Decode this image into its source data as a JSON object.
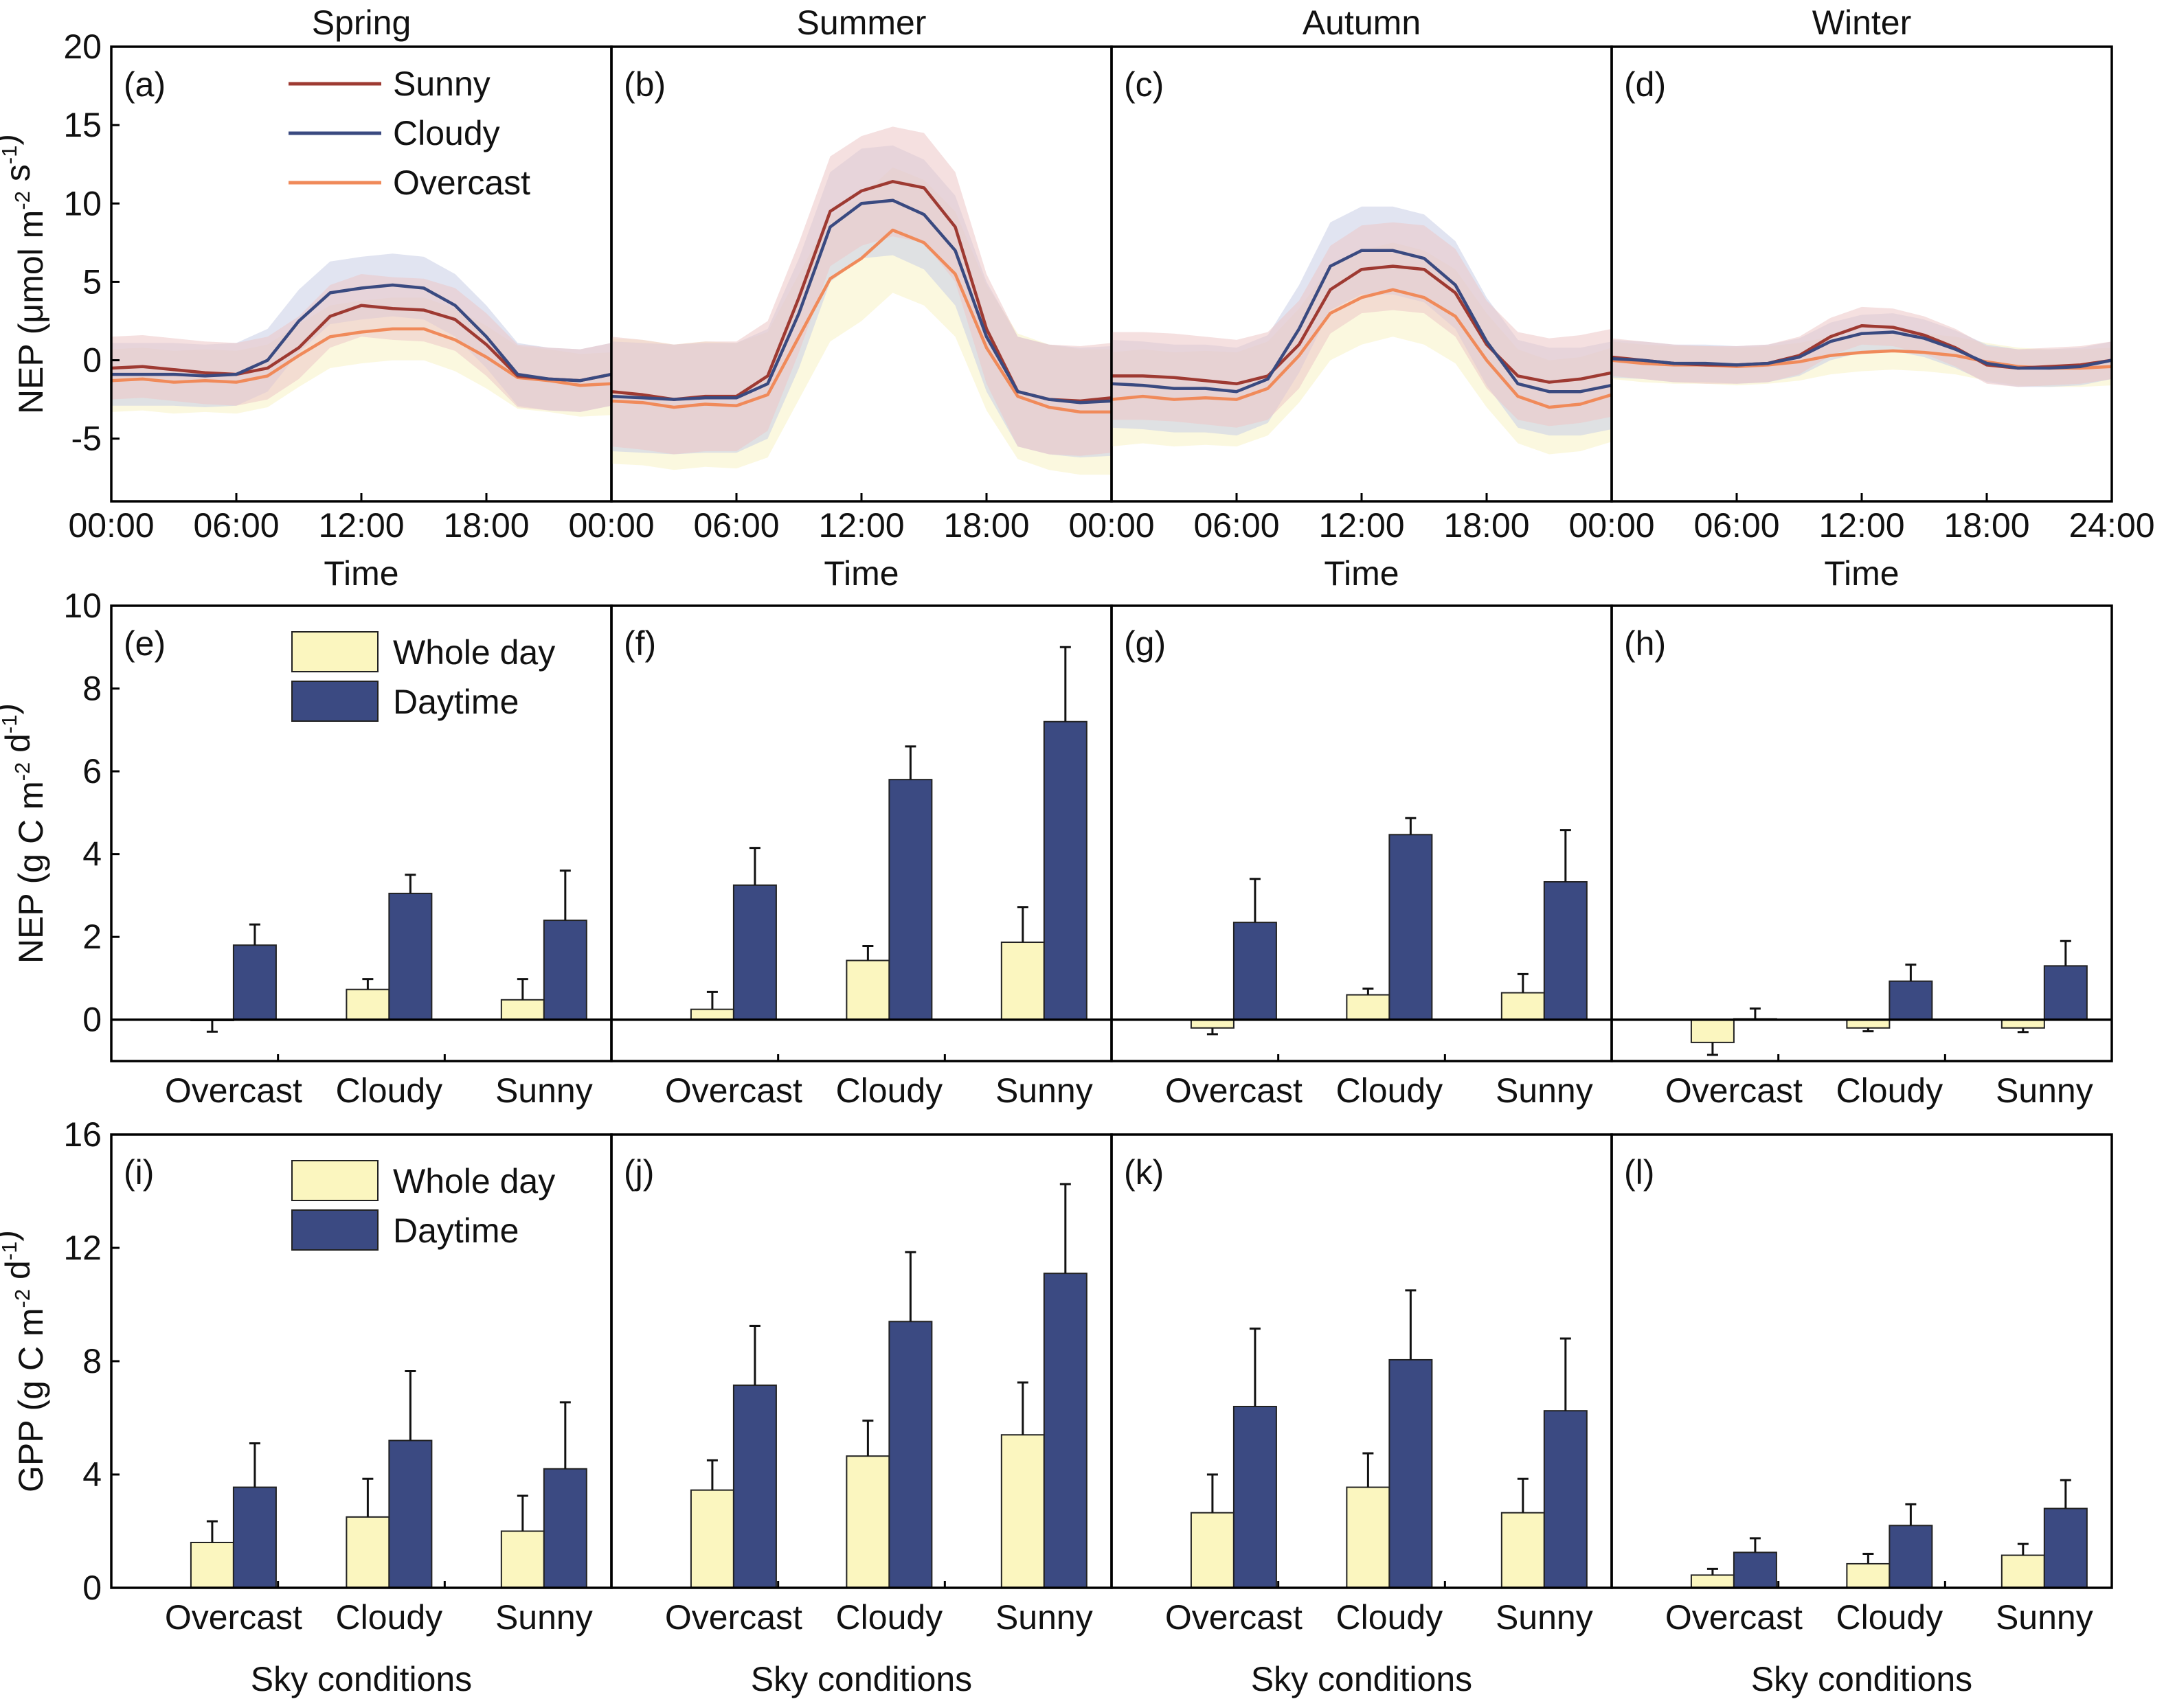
{
  "colors": {
    "sunny": "#9e3a32",
    "cloudy": "#3a4a80",
    "overcast": "#f08a5a",
    "sunny_band": "#ecc6c6",
    "cloudy_band": "#c8cde6",
    "overcast_band": "#f7f3c4",
    "whole_day": "#fbf6bf",
    "daytime": "#3b4a82",
    "axis": "#000000"
  },
  "seasons": [
    "Spring",
    "Summer",
    "Autumn",
    "Winter"
  ],
  "rows": {
    "nep_diurnal": {
      "ylabel": "NEP (μmol m-2 s-1)",
      "xlabel": "Time"
    },
    "nep_daily": {
      "ylabel": "NEP (g C m-2 d-1)",
      "xlabel": ""
    },
    "gpp_daily": {
      "ylabel": "GPP (g C m-2 d-1)",
      "xlabel": "Sky conditions"
    }
  },
  "chart_data": [
    {
      "type": "line",
      "panel_labels": [
        "(a)",
        "(b)",
        "(c)",
        "(d)"
      ],
      "xlabel": "Time",
      "ylabel": "NEP (μmol m-2 s-1)",
      "ylim": [
        -9,
        20
      ],
      "yticks": [
        -5,
        0,
        5,
        10,
        15,
        20
      ],
      "xticks": [
        "00:00",
        "06:00",
        "12:00",
        "18:00"
      ],
      "xtick_last": "24:00",
      "x_hours": [
        0,
        1.5,
        3,
        4.5,
        6,
        7.5,
        9,
        10.5,
        12,
        13.5,
        15,
        16.5,
        18,
        19.5,
        21,
        22.5,
        24
      ],
      "legend": [
        "Sunny",
        "Cloudy",
        "Overcast"
      ],
      "legend_position": "top-right of panel (a)",
      "band_halfwidth": {
        "Spring": [
          2.0,
          2.0,
          2.0
        ],
        "Summer": [
          3.5,
          3.5,
          4.0
        ],
        "Autumn": [
          2.8,
          2.8,
          3.0
        ],
        "Winter": [
          1.2,
          1.2,
          1.2
        ]
      },
      "panels": [
        {
          "season": "Spring",
          "series": [
            {
              "name": "Sunny",
              "values": [
                -0.5,
                -0.4,
                -0.6,
                -0.8,
                -0.9,
                -0.5,
                0.8,
                2.8,
                3.5,
                3.3,
                3.2,
                2.6,
                1.0,
                -1.0,
                -1.2,
                -1.3,
                -0.9
              ]
            },
            {
              "name": "Cloudy",
              "values": [
                -0.9,
                -0.9,
                -0.9,
                -1.0,
                -0.9,
                0.0,
                2.5,
                4.3,
                4.6,
                4.8,
                4.6,
                3.5,
                1.5,
                -0.9,
                -1.2,
                -1.3,
                -0.9
              ]
            },
            {
              "name": "Overcast",
              "values": [
                -1.3,
                -1.2,
                -1.4,
                -1.3,
                -1.4,
                -1.0,
                0.3,
                1.5,
                1.8,
                2.0,
                2.0,
                1.3,
                0.2,
                -1.1,
                -1.3,
                -1.6,
                -1.5
              ]
            }
          ]
        },
        {
          "season": "Summer",
          "series": [
            {
              "name": "Sunny",
              "values": [
                -2.0,
                -2.2,
                -2.5,
                -2.3,
                -2.3,
                -1.0,
                4.0,
                9.5,
                10.8,
                11.4,
                11.0,
                8.5,
                2.0,
                -2.0,
                -2.5,
                -2.6,
                -2.4
              ]
            },
            {
              "name": "Cloudy",
              "values": [
                -2.3,
                -2.4,
                -2.5,
                -2.4,
                -2.4,
                -1.5,
                3.0,
                8.5,
                10.0,
                10.2,
                9.3,
                7.0,
                1.5,
                -2.0,
                -2.5,
                -2.7,
                -2.6
              ]
            },
            {
              "name": "Overcast",
              "values": [
                -2.6,
                -2.7,
                -3.0,
                -2.8,
                -2.9,
                -2.2,
                1.5,
                5.2,
                6.5,
                8.3,
                7.5,
                5.5,
                0.8,
                -2.3,
                -3.0,
                -3.3,
                -3.3
              ]
            }
          ]
        },
        {
          "season": "Autumn",
          "series": [
            {
              "name": "Sunny",
              "values": [
                -1.0,
                -1.0,
                -1.1,
                -1.3,
                -1.5,
                -1.0,
                1.0,
                4.5,
                5.8,
                6.0,
                5.8,
                4.3,
                1.0,
                -1.0,
                -1.4,
                -1.2,
                -0.8
              ]
            },
            {
              "name": "Cloudy",
              "values": [
                -1.5,
                -1.6,
                -1.8,
                -1.8,
                -2.0,
                -1.2,
                2.0,
                6.0,
                7.0,
                7.0,
                6.5,
                4.8,
                1.2,
                -1.5,
                -2.0,
                -2.0,
                -1.6
              ]
            },
            {
              "name": "Overcast",
              "values": [
                -2.5,
                -2.3,
                -2.5,
                -2.4,
                -2.5,
                -1.8,
                0.3,
                3.0,
                4.0,
                4.5,
                4.0,
                2.8,
                0.0,
                -2.3,
                -3.0,
                -2.8,
                -2.2
              ]
            }
          ]
        },
        {
          "season": "Winter",
          "series": [
            {
              "name": "Sunny",
              "values": [
                0.2,
                0.0,
                -0.2,
                -0.3,
                -0.3,
                -0.2,
                0.3,
                1.5,
                2.2,
                2.1,
                1.6,
                0.8,
                -0.3,
                -0.5,
                -0.4,
                -0.3,
                0.0
              ]
            },
            {
              "name": "Cloudy",
              "values": [
                0.1,
                0.0,
                -0.2,
                -0.2,
                -0.3,
                -0.2,
                0.2,
                1.2,
                1.7,
                1.8,
                1.4,
                0.7,
                -0.2,
                -0.5,
                -0.5,
                -0.4,
                0.0
              ]
            },
            {
              "name": "Overcast",
              "values": [
                0.0,
                -0.2,
                -0.3,
                -0.3,
                -0.4,
                -0.3,
                -0.1,
                0.3,
                0.5,
                0.6,
                0.5,
                0.3,
                -0.1,
                -0.4,
                -0.5,
                -0.5,
                -0.4
              ]
            }
          ]
        }
      ]
    },
    {
      "type": "bar",
      "panel_labels": [
        "(e)",
        "(f)",
        "(g)",
        "(h)"
      ],
      "xlabel": "",
      "ylabel": "NEP (g C m-2 d-1)",
      "ylim": [
        -1,
        10
      ],
      "yticks": [
        0,
        2,
        4,
        6,
        8,
        10
      ],
      "categories": [
        "Overcast",
        "Cloudy",
        "Sunny"
      ],
      "legend": [
        "Whole day",
        "Daytime"
      ],
      "legend_position": "top-right of panel (e)",
      "panels": [
        {
          "season": "Spring",
          "series": [
            {
              "name": "Whole day",
              "values": [
                -0.02,
                0.73,
                0.48
              ],
              "errors": [
                0.27,
                0.25,
                0.5
              ]
            },
            {
              "name": "Daytime",
              "values": [
                1.8,
                3.05,
                2.4
              ],
              "errors": [
                0.5,
                0.45,
                1.2
              ]
            }
          ]
        },
        {
          "season": "Summer",
          "series": [
            {
              "name": "Whole day",
              "values": [
                0.25,
                1.43,
                1.87
              ],
              "errors": [
                0.42,
                0.35,
                0.85
              ]
            },
            {
              "name": "Daytime",
              "values": [
                3.25,
                5.8,
                7.2
              ],
              "errors": [
                0.9,
                0.8,
                1.8
              ]
            }
          ]
        },
        {
          "season": "Autumn",
          "series": [
            {
              "name": "Whole day",
              "values": [
                -0.2,
                0.6,
                0.65
              ],
              "errors": [
                0.15,
                0.15,
                0.45
              ]
            },
            {
              "name": "Daytime",
              "values": [
                2.35,
                4.47,
                3.33
              ],
              "errors": [
                1.05,
                0.4,
                1.25
              ]
            }
          ]
        },
        {
          "season": "Winter",
          "series": [
            {
              "name": "Whole day",
              "values": [
                -0.55,
                -0.2,
                -0.2
              ],
              "errors": [
                0.3,
                0.08,
                0.1
              ]
            },
            {
              "name": "Daytime",
              "values": [
                0.02,
                0.93,
                1.3
              ],
              "errors": [
                0.25,
                0.4,
                0.6
              ]
            }
          ]
        }
      ]
    },
    {
      "type": "bar",
      "panel_labels": [
        "(i)",
        "(j)",
        "(k)",
        "(l)"
      ],
      "xlabel": "Sky conditions",
      "ylabel": "GPP (g C m-2 d-1)",
      "ylim": [
        0,
        16
      ],
      "yticks": [
        0,
        4,
        8,
        12,
        16
      ],
      "categories": [
        "Overcast",
        "Cloudy",
        "Sunny"
      ],
      "legend": [
        "Whole day",
        "Daytime"
      ],
      "legend_position": "top-right of panel (i)",
      "panels": [
        {
          "season": "Spring",
          "series": [
            {
              "name": "Whole day",
              "values": [
                1.6,
                2.5,
                2.0
              ],
              "errors": [
                0.75,
                1.35,
                1.25
              ]
            },
            {
              "name": "Daytime",
              "values": [
                3.55,
                5.2,
                4.2
              ],
              "errors": [
                1.55,
                2.45,
                2.35
              ]
            }
          ]
        },
        {
          "season": "Summer",
          "series": [
            {
              "name": "Whole day",
              "values": [
                3.45,
                4.65,
                5.4
              ],
              "errors": [
                1.05,
                1.25,
                1.85
              ]
            },
            {
              "name": "Daytime",
              "values": [
                7.15,
                9.4,
                11.1
              ],
              "errors": [
                2.1,
                2.45,
                3.15
              ]
            }
          ]
        },
        {
          "season": "Autumn",
          "series": [
            {
              "name": "Whole day",
              "values": [
                2.65,
                3.55,
                2.65
              ],
              "errors": [
                1.35,
                1.2,
                1.2
              ]
            },
            {
              "name": "Daytime",
              "values": [
                6.4,
                8.05,
                6.25
              ],
              "errors": [
                2.75,
                2.45,
                2.55
              ]
            }
          ]
        },
        {
          "season": "Winter",
          "series": [
            {
              "name": "Whole day",
              "values": [
                0.45,
                0.85,
                1.15
              ],
              "errors": [
                0.22,
                0.35,
                0.4
              ]
            },
            {
              "name": "Daytime",
              "values": [
                1.25,
                2.2,
                2.8
              ],
              "errors": [
                0.5,
                0.75,
                1.0
              ]
            }
          ]
        }
      ]
    }
  ]
}
